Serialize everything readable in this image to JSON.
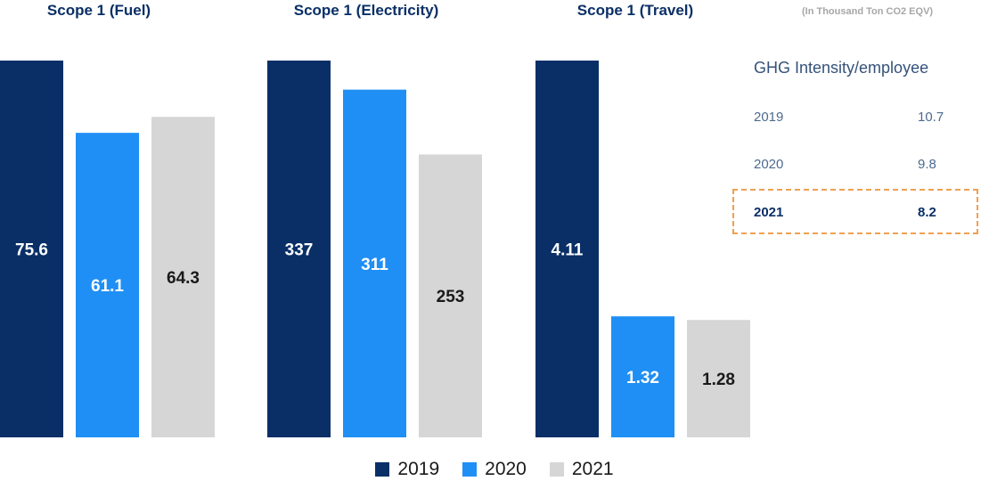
{
  "unit_note": "(In Thousand Ton  CO2 EQV)",
  "colors": {
    "2019": "#0a2f66",
    "2020": "#1f8ff5",
    "2021": "#d6d6d6"
  },
  "chart_data": [
    {
      "type": "bar",
      "title": "Scope 1 (Fuel)",
      "categories": [
        "2019",
        "2020",
        "2021"
      ],
      "values": [
        75.6,
        61.1,
        64.3
      ],
      "labels": [
        "75.6",
        "61.1",
        "64.3"
      ]
    },
    {
      "type": "bar",
      "title": "Scope 1 (Electricity)",
      "categories": [
        "2019",
        "2020",
        "2021"
      ],
      "values": [
        337,
        311,
        253
      ],
      "labels": [
        "337",
        "311",
        "253"
      ]
    },
    {
      "type": "bar",
      "title": "Scope 1 (Travel)",
      "categories": [
        "2019",
        "2020",
        "2021"
      ],
      "values": [
        4.11,
        1.32,
        1.28
      ],
      "labels": [
        "4.11",
        "1.32",
        "1.28"
      ]
    }
  ],
  "legend": [
    {
      "label": "2019",
      "color": "#0a2f66"
    },
    {
      "label": "2020",
      "color": "#1f8ff5"
    },
    {
      "label": "2021",
      "color": "#d6d6d6"
    }
  ],
  "ghg": {
    "title": "GHG Intensity/employee",
    "rows": [
      {
        "year": "2019",
        "value": "10.7"
      },
      {
        "year": "2020",
        "value": "9.8"
      },
      {
        "year": "2021",
        "value": "8.2"
      }
    ],
    "highlight_color": "#f0a050"
  }
}
